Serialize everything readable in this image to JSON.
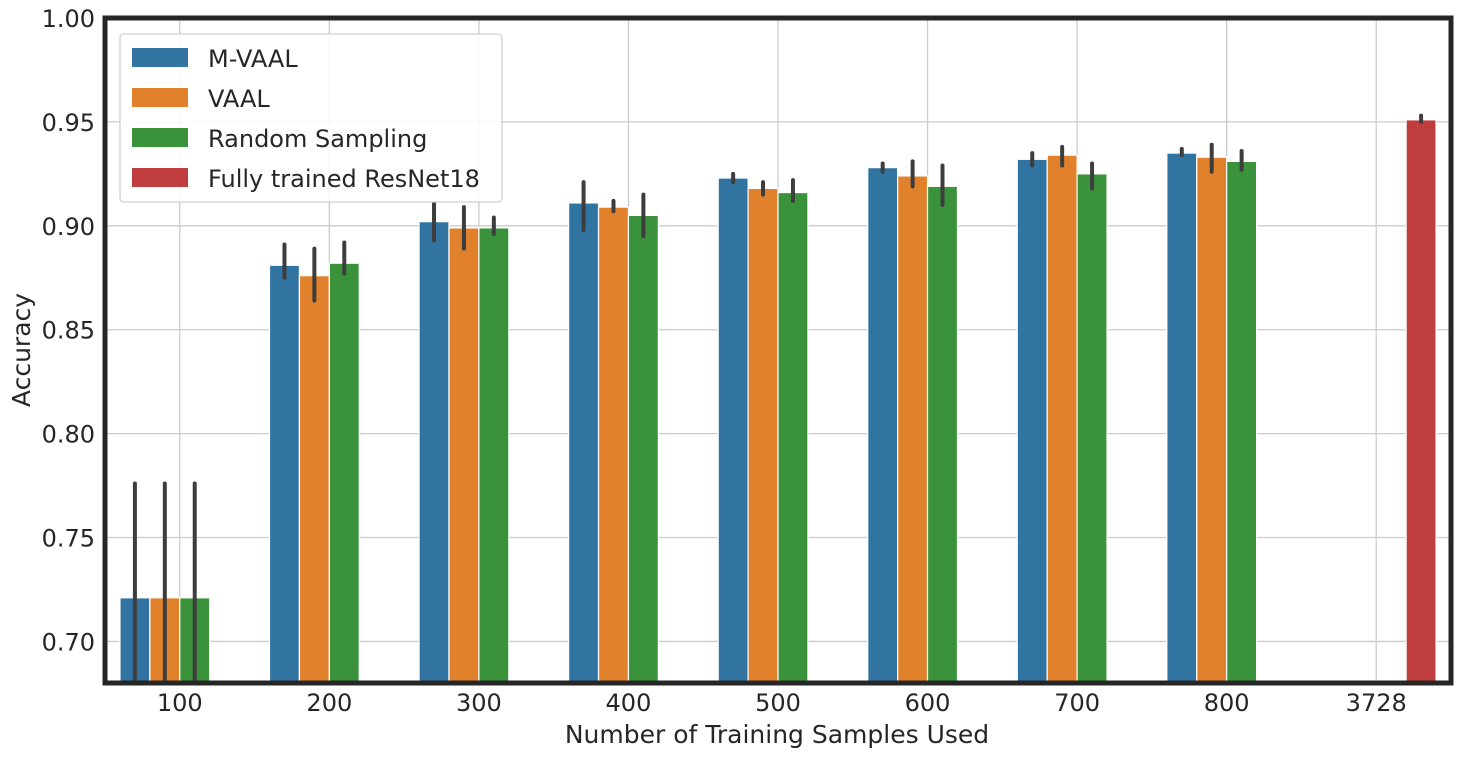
{
  "chart_data": {
    "type": "bar",
    "title": "",
    "xlabel": "Number of Training Samples Used",
    "ylabel": "Accuracy",
    "ylim": [
      0.68,
      1.0
    ],
    "yticks": [
      "0.70",
      "0.75",
      "0.80",
      "0.85",
      "0.90",
      "0.95",
      "1.00"
    ],
    "grid": true,
    "legend_position": "top-left",
    "categories": [
      "100",
      "200",
      "300",
      "400",
      "500",
      "600",
      "700",
      "800",
      "3728"
    ],
    "series": [
      {
        "name": "M-VAAL",
        "color": "#3274a1",
        "values": [
          0.721,
          0.881,
          0.902,
          0.911,
          0.923,
          0.928,
          0.932,
          0.935,
          null
        ],
        "ci_low": [
          0.665,
          0.875,
          0.893,
          0.898,
          0.921,
          0.926,
          0.929,
          0.934,
          null
        ],
        "ci_high": [
          0.776,
          0.891,
          0.911,
          0.921,
          0.925,
          0.93,
          0.935,
          0.937,
          null
        ]
      },
      {
        "name": "VAAL",
        "color": "#e1812c",
        "values": [
          0.721,
          0.876,
          0.899,
          0.909,
          0.918,
          0.924,
          0.934,
          0.933,
          null
        ],
        "ci_low": [
          0.665,
          0.864,
          0.889,
          0.907,
          0.915,
          0.919,
          0.929,
          0.926,
          null
        ],
        "ci_high": [
          0.776,
          0.889,
          0.909,
          0.912,
          0.921,
          0.931,
          0.938,
          0.939,
          null
        ]
      },
      {
        "name": "Random Sampling",
        "color": "#3a923a",
        "values": [
          0.721,
          0.882,
          0.899,
          0.905,
          0.916,
          0.919,
          0.925,
          0.931,
          null
        ],
        "ci_low": [
          0.665,
          0.877,
          0.896,
          0.895,
          0.912,
          0.91,
          0.918,
          0.927,
          null
        ],
        "ci_high": [
          0.776,
          0.892,
          0.904,
          0.915,
          0.922,
          0.929,
          0.93,
          0.936,
          null
        ]
      },
      {
        "name": "Fully trained ResNet18",
        "color": "#c03d3e",
        "values": [
          null,
          null,
          null,
          null,
          null,
          null,
          null,
          null,
          0.951
        ],
        "ci_low": [
          null,
          null,
          null,
          null,
          null,
          null,
          null,
          null,
          0.95
        ],
        "ci_high": [
          null,
          null,
          null,
          null,
          null,
          null,
          null,
          null,
          0.953
        ]
      }
    ]
  }
}
